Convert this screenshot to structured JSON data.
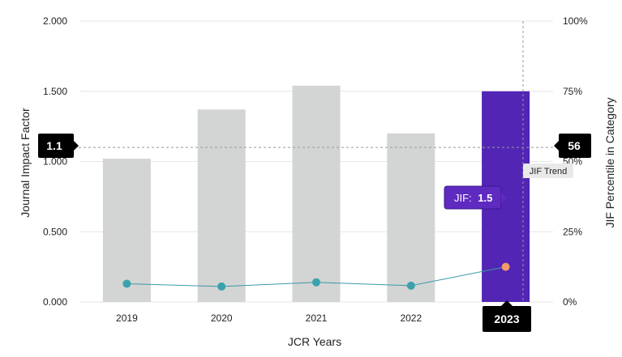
{
  "chart_data": {
    "type": "bar",
    "categories": [
      "2019",
      "2020",
      "2021",
      "2022",
      "2023"
    ],
    "xlabel": "JCR Years",
    "ylabel": "Journal Impact Factor",
    "y2label": "JIF Percentile in Category",
    "ylim": [
      0,
      2.0
    ],
    "y2lim": [
      0,
      100
    ],
    "yticks": [
      "0.000",
      "0.500",
      "1.000",
      "1.500",
      "2.000"
    ],
    "y2ticks": [
      "0%",
      "25%",
      "50%",
      "75%",
      "100%"
    ],
    "series": [
      {
        "kind": "bar",
        "axis": "left",
        "values": [
          1.02,
          1.37,
          1.54,
          1.2,
          1.5
        ]
      },
      {
        "name": "JIF Trend",
        "kind": "line",
        "axis": "right",
        "values": [
          6.5,
          5.5,
          7,
          5.8,
          12.5
        ]
      }
    ],
    "highlight_index": 4,
    "grid": true,
    "crosshair": {
      "left_value": "1.1",
      "right_value": "56",
      "y_left": 1.1,
      "selected_label": "2023"
    },
    "tooltip": {
      "label": "JIF:",
      "value": "1.5"
    },
    "line_tooltip": "JIF Trend",
    "colors": {
      "bar": "#d3d4d4",
      "highlight_bar": "#5225b5",
      "line": "#3a9aa8",
      "marker": "#3aa2ad",
      "highlight_marker": "#f29a6b",
      "badge": "#000000",
      "tooltip_bg": "#5e2ac0",
      "grid": "#e6e6e6",
      "crosshair": "#999999"
    }
  }
}
